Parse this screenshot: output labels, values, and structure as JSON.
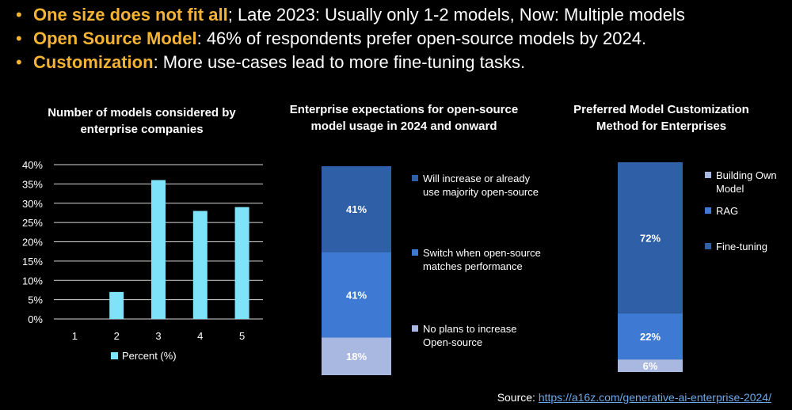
{
  "bullets": [
    {
      "highlight": "One size does not fit all",
      "rest": "; Late 2023: Usually only 1-2 models, Now: Multiple models"
    },
    {
      "highlight": "Open Source Model",
      "rest": ": 46% of respondents prefer open-source models by 2024."
    },
    {
      "highlight": "Customization",
      "rest": ": More use-cases lead to more fine-tuning tasks."
    }
  ],
  "bullet_symbol": "•",
  "colors": {
    "accent": "#f5b334",
    "bar_cyan": "#7ee3f8",
    "dark_blue": "#2f5fa6",
    "mid_blue": "#3e7ad4",
    "light_blue": "#a8b8e0"
  },
  "chart_data": [
    {
      "type": "bar",
      "title": "Number of models considered by enterprise companies",
      "categories": [
        "1",
        "2",
        "3",
        "4",
        "5"
      ],
      "values": [
        0,
        7,
        36,
        28,
        29
      ],
      "ylim": [
        0,
        40
      ],
      "yticks": [
        "0%",
        "5%",
        "10%",
        "15%",
        "20%",
        "25%",
        "30%",
        "35%",
        "40%"
      ],
      "legend": "Percent (%)",
      "grid": true
    },
    {
      "type": "bar",
      "stacked": true,
      "title": "Enterprise expectations for open-source model usage in 2024 and onward",
      "series": [
        {
          "name": "No plans to increase Open-source",
          "value": 18,
          "label": "18%"
        },
        {
          "name": "Switch when open-source matches performance",
          "value": 41,
          "label": "41%"
        },
        {
          "name": "Will increase or already use majority open-source",
          "value": 41,
          "label": "41%"
        }
      ]
    },
    {
      "type": "bar",
      "stacked": true,
      "title": "Preferred Model Customization Method for Enterprises",
      "series": [
        {
          "name": "Building Own Model",
          "value": 6,
          "label": "6%"
        },
        {
          "name": "RAG",
          "value": 22,
          "label": "22%"
        },
        {
          "name": "Fine-tuning",
          "value": 72,
          "label": "72%"
        }
      ]
    }
  ],
  "source": {
    "label": "Source: ",
    "link": "https://a16z.com/generative-ai-enterprise-2024/"
  }
}
